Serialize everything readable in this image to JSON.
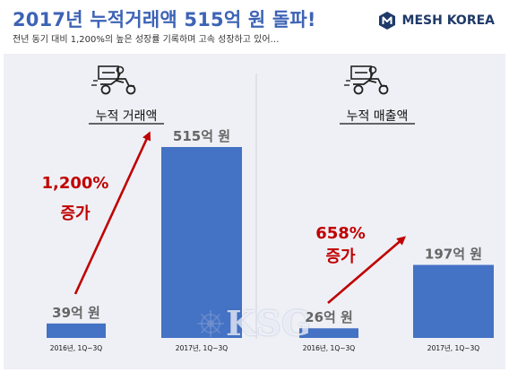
{
  "title": "2017년 누적거래액 515억 원 돌파!",
  "subtitle": "전년 동기 대비 1,200%의 높은 성장률 기록하며 고속 성장하고 있어…",
  "brand": {
    "name": "MESH KOREA",
    "icon": "mesh-korea-logo-icon"
  },
  "watermark": "KSG",
  "colors": {
    "bar": "#4472c4",
    "arrow": "#c00000",
    "title": "#3d63b5",
    "panel": "#eef0f5"
  },
  "chart_data": [
    {
      "type": "bar",
      "title": "누적 거래액",
      "icon": "delivery-scooter-icon",
      "categories": [
        "2016년, 1Q~3Q",
        "2017년, 1Q~3Q"
      ],
      "values": [
        39,
        515
      ],
      "value_labels": [
        "39억 원",
        "515억 원"
      ],
      "unit": "억 원",
      "growth": {
        "percent": "1,200%",
        "label": "증가"
      }
    },
    {
      "type": "bar",
      "title": "누적 매출액",
      "icon": "delivery-scooter-icon",
      "categories": [
        "2016년, 1Q~3Q",
        "2017년, 1Q~3Q"
      ],
      "values": [
        26,
        197
      ],
      "value_labels": [
        "26억 원",
        "197억 원"
      ],
      "unit": "억 원",
      "growth": {
        "percent": "658%",
        "label": "증가"
      }
    }
  ]
}
